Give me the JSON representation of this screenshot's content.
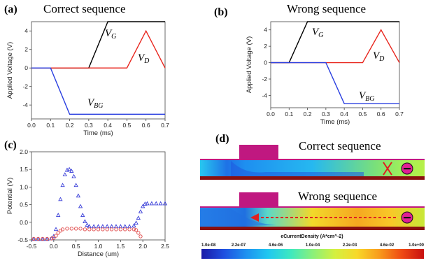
{
  "panels": {
    "a": {
      "label": "(a)",
      "title": "Correct sequence"
    },
    "b": {
      "label": "(b)",
      "title": "Wrong sequence"
    },
    "c": {
      "label": "(c)"
    },
    "d": {
      "label": "(d)",
      "top_title": "Correct sequence",
      "bottom_title": "Wrong sequence"
    }
  },
  "colorbar": {
    "title": "eCurrentDensity (A*cm^-2)",
    "ticks": [
      "1.0e-08",
      "2.2e-07",
      "4.6e-06",
      "1.0e-04",
      "2.2e-03",
      "4.6e-02",
      "1.0e+00"
    ],
    "colors": [
      "#1a1aa6",
      "#1f4fe0",
      "#1e90f0",
      "#20c8f0",
      "#3ee8c0",
      "#8af07a",
      "#d4f040",
      "#f8d828",
      "#f89a1c",
      "#ef4a14",
      "#c81010"
    ]
  },
  "chart_data": [
    {
      "id": "a",
      "type": "line",
      "title": "Correct sequence",
      "xlabel": "Time (ms)",
      "ylabel": "Applied Voltage (V)",
      "xlim": [
        0.0,
        0.7
      ],
      "ylim": [
        -5.5,
        5.0
      ],
      "xticks": [
        "0.0",
        "0.1",
        "0.2",
        "0.3",
        "0.4",
        "0.5",
        "0.6",
        "0.7"
      ],
      "yticks": [
        "4",
        "2",
        "0",
        "-2",
        "-4"
      ],
      "ytick_values": [
        4,
        2,
        0,
        -2,
        -4
      ],
      "series": [
        {
          "name": "V",
          "sub": "G",
          "color": "#000000",
          "x": [
            0.0,
            0.3,
            0.4,
            0.7
          ],
          "y": [
            0,
            0,
            5,
            5
          ]
        },
        {
          "name": "V",
          "sub": "D",
          "color": "#e8241c",
          "x": [
            0.0,
            0.5,
            0.6,
            0.7
          ],
          "y": [
            0,
            0,
            4,
            0
          ]
        },
        {
          "name": "V",
          "sub": "BG",
          "color": "#2a3fe0",
          "x": [
            0.0,
            0.1,
            0.2,
            0.7
          ],
          "y": [
            0,
            0,
            -5,
            -5
          ]
        }
      ]
    },
    {
      "id": "b",
      "type": "line",
      "title": "Wrong sequence",
      "xlabel": "Time (ms)",
      "ylabel": "Applied Voltage (V)",
      "xlim": [
        0.0,
        0.7
      ],
      "ylim": [
        -5.5,
        5.0
      ],
      "xticks": [
        "0.0",
        "0.1",
        "0.2",
        "0.3",
        "0.4",
        "0.5",
        "0.6",
        "0.7"
      ],
      "yticks": [
        "4",
        "2",
        "0",
        "-2",
        "-4"
      ],
      "ytick_values": [
        4,
        2,
        0,
        -2,
        -4
      ],
      "series": [
        {
          "name": "V",
          "sub": "G",
          "color": "#000000",
          "x": [
            0.0,
            0.1,
            0.2,
            0.7
          ],
          "y": [
            0,
            0,
            5,
            5
          ]
        },
        {
          "name": "V",
          "sub": "D",
          "color": "#e8241c",
          "x": [
            0.0,
            0.5,
            0.6,
            0.7
          ],
          "y": [
            0,
            0,
            4,
            0
          ]
        },
        {
          "name": "V",
          "sub": "BG",
          "color": "#2a3fe0",
          "x": [
            0.0,
            0.3,
            0.4,
            0.7
          ],
          "y": [
            0,
            0,
            -5,
            -5
          ]
        }
      ]
    },
    {
      "id": "c",
      "type": "scatter",
      "xlabel": "Distance (um)",
      "ylabel": "Potential (V)",
      "xlim": [
        -0.5,
        2.5
      ],
      "ylim": [
        -0.5,
        2.0
      ],
      "xticks": [
        "-0.5",
        "0.0",
        "0.5",
        "1.0",
        "1.5",
        "2.0",
        "2.5"
      ],
      "yticks": [
        "2.0",
        "1.5",
        "1.0",
        "0.5",
        "0.0",
        "-0.5"
      ],
      "ytick_values": [
        2.0,
        1.5,
        1.0,
        0.5,
        0.0,
        -0.5
      ],
      "series": [
        {
          "marker": "triangle",
          "color": "#3a3fd8",
          "x": [
            -0.45,
            -0.35,
            -0.25,
            -0.15,
            -0.05,
            0.0,
            0.05,
            0.1,
            0.15,
            0.2,
            0.25,
            0.3,
            0.35,
            0.4,
            0.45,
            0.5,
            0.55,
            0.6,
            0.65,
            0.7,
            0.75,
            0.8,
            0.9,
            1.0,
            1.1,
            1.2,
            1.3,
            1.4,
            1.5,
            1.6,
            1.7,
            1.8,
            1.85,
            1.9,
            1.95,
            2.0,
            2.05,
            2.1,
            2.2,
            2.3,
            2.4,
            2.5
          ],
          "y": [
            -0.48,
            -0.48,
            -0.48,
            -0.48,
            -0.46,
            -0.4,
            -0.2,
            0.2,
            0.65,
            1.05,
            1.35,
            1.48,
            1.5,
            1.45,
            1.3,
            1.05,
            0.75,
            0.45,
            0.2,
            0.02,
            -0.08,
            -0.12,
            -0.12,
            -0.12,
            -0.12,
            -0.12,
            -0.12,
            -0.12,
            -0.12,
            -0.12,
            -0.12,
            -0.1,
            -0.02,
            0.12,
            0.3,
            0.45,
            0.52,
            0.53,
            0.53,
            0.53,
            0.53,
            0.53
          ]
        },
        {
          "marker": "circle",
          "color": "#e04848",
          "x": [
            -0.45,
            -0.35,
            -0.25,
            -0.15,
            -0.05,
            0.0,
            0.05,
            0.1,
            0.15,
            0.2,
            0.3,
            0.4,
            0.5,
            0.6,
            0.7,
            0.8,
            0.9,
            1.0,
            1.1,
            1.2,
            1.3,
            1.4,
            1.5,
            1.6,
            1.7,
            1.8,
            1.85,
            1.9,
            1.95
          ],
          "y": [
            -0.47,
            -0.47,
            -0.47,
            -0.47,
            -0.46,
            -0.44,
            -0.38,
            -0.3,
            -0.24,
            -0.2,
            -0.18,
            -0.18,
            -0.18,
            -0.18,
            -0.2,
            -0.2,
            -0.2,
            -0.2,
            -0.2,
            -0.2,
            -0.2,
            -0.2,
            -0.2,
            -0.2,
            -0.2,
            -0.2,
            -0.22,
            -0.3,
            -0.4
          ]
        }
      ]
    }
  ]
}
